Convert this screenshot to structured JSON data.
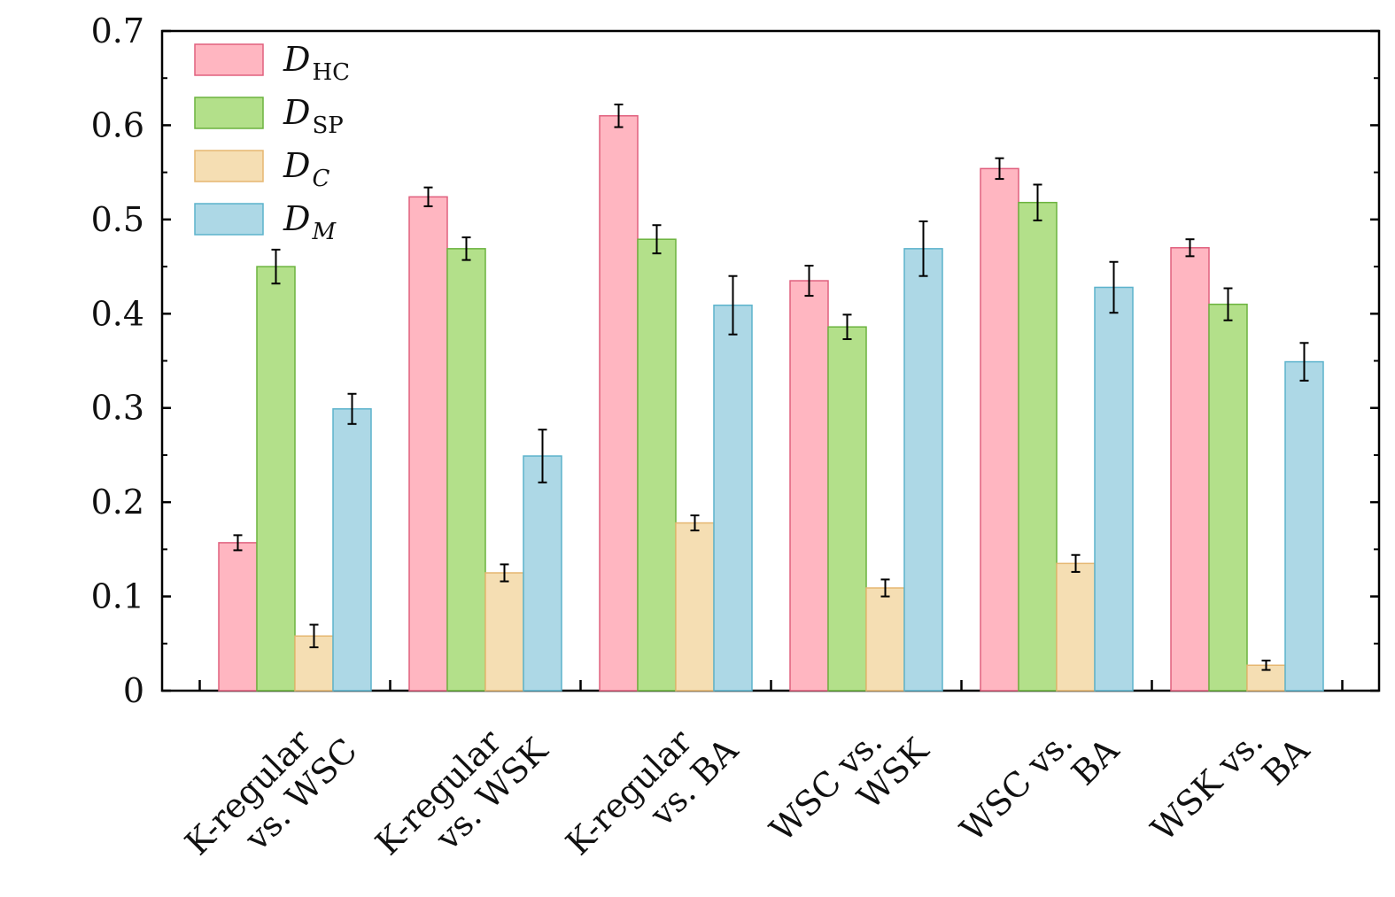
{
  "chart_data": {
    "type": "bar",
    "title": "",
    "xlabel": "",
    "ylabel": "",
    "ylim": [
      0,
      0.7
    ],
    "yticks": [
      "0",
      "0.1",
      "0.2",
      "0.3",
      "0.4",
      "0.5",
      "0.6",
      "0.7"
    ],
    "categories": [
      [
        "K-regular",
        "vs. WSC"
      ],
      [
        "K-regular",
        "vs. WSK"
      ],
      [
        "K-regular",
        "vs. BA"
      ],
      [
        "WSC vs.",
        "WSK"
      ],
      [
        "WSC vs.",
        "BA"
      ],
      [
        "WSK vs.",
        "BA"
      ]
    ],
    "legend_position": "top-left",
    "series": [
      {
        "name": "D",
        "subscript": "HC",
        "subscript_italic": false,
        "fill": "#ffb6c1",
        "stroke": "#e0607e",
        "values": [
          0.157,
          0.524,
          0.61,
          0.435,
          0.554,
          0.47
        ],
        "errors": [
          0.008,
          0.01,
          0.012,
          0.016,
          0.011,
          0.009
        ]
      },
      {
        "name": "D",
        "subscript": "SP",
        "subscript_italic": false,
        "fill": "#b3e08a",
        "stroke": "#6cb33f",
        "values": [
          0.45,
          0.469,
          0.479,
          0.386,
          0.518,
          0.41
        ],
        "errors": [
          0.018,
          0.012,
          0.015,
          0.013,
          0.019,
          0.017
        ]
      },
      {
        "name": "D",
        "subscript": "C",
        "subscript_italic": true,
        "fill": "#f5deb3",
        "stroke": "#e6b771",
        "values": [
          0.058,
          0.125,
          0.178,
          0.109,
          0.135,
          0.027
        ],
        "errors": [
          0.012,
          0.009,
          0.008,
          0.009,
          0.009,
          0.005
        ]
      },
      {
        "name": "D",
        "subscript": "M",
        "subscript_italic": true,
        "fill": "#add8e6",
        "stroke": "#5cb3cc",
        "values": [
          0.299,
          0.249,
          0.409,
          0.469,
          0.428,
          0.349
        ],
        "errors": [
          0.016,
          0.028,
          0.031,
          0.029,
          0.027,
          0.02
        ]
      }
    ]
  }
}
